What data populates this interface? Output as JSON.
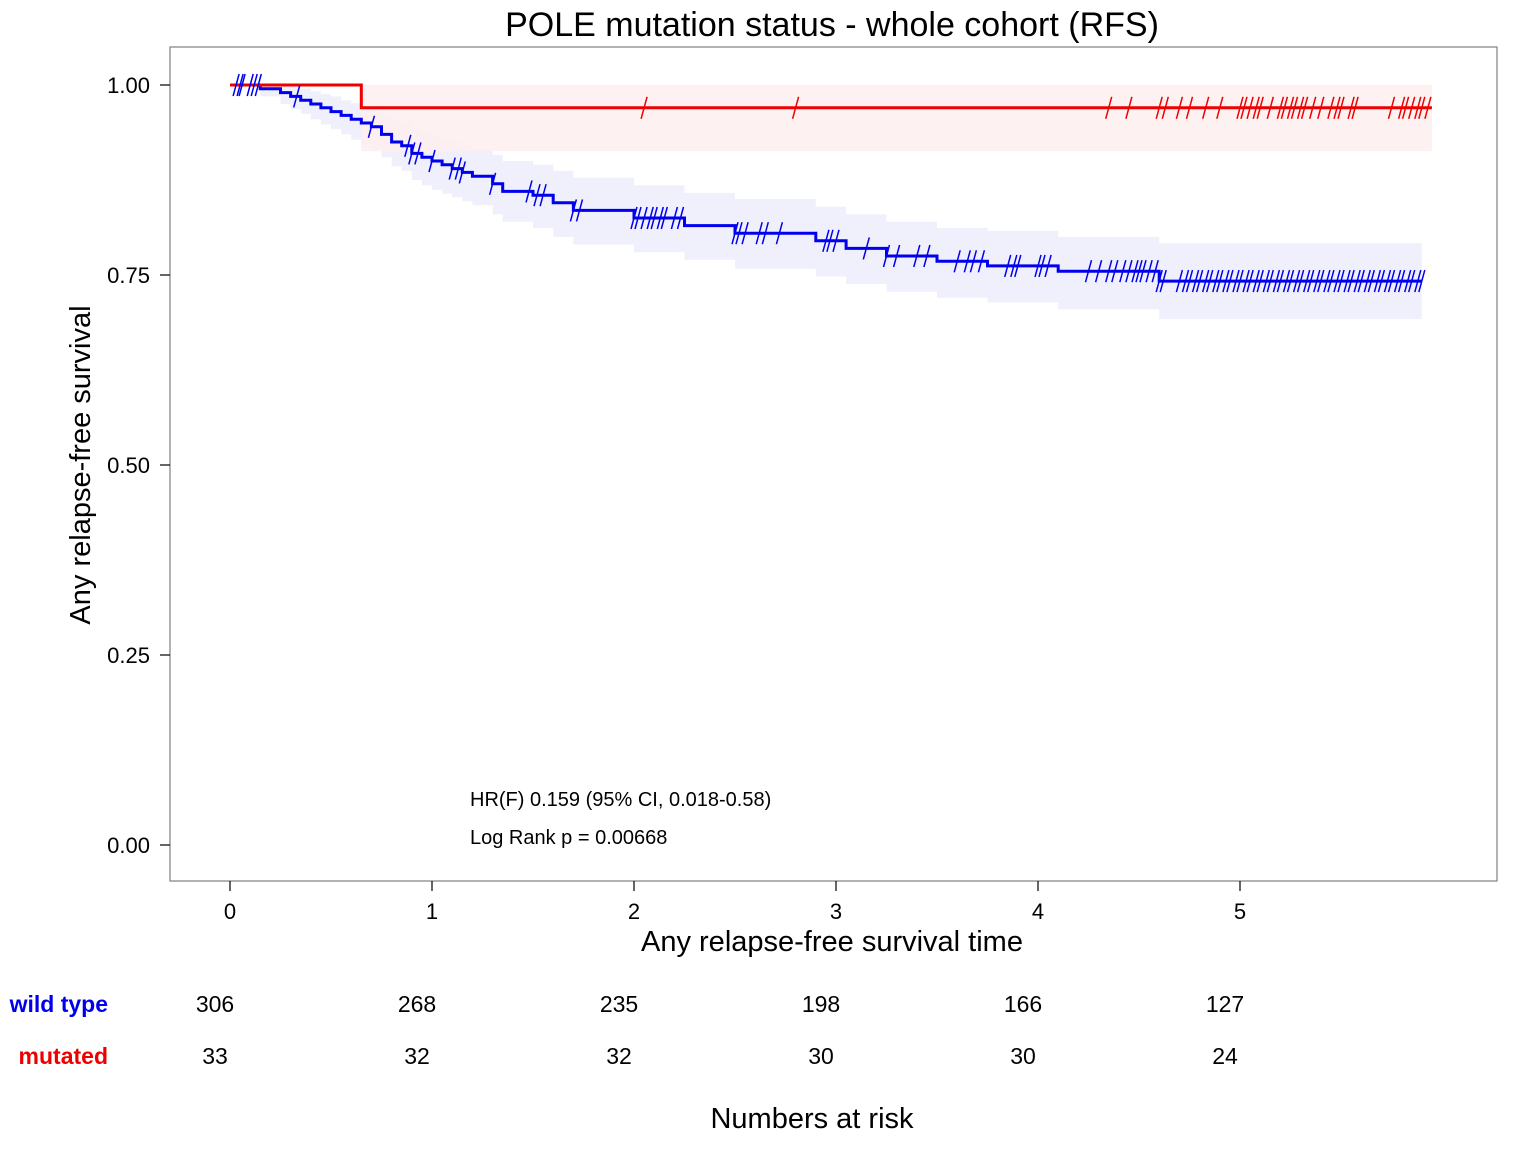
{
  "chart_data": {
    "type": "line",
    "title": "POLE mutation status - whole cohort (RFS)",
    "xlabel": "Any relapse-free survival time",
    "ylabel": "Any relapse-free survival",
    "xlim": [
      0,
      6
    ],
    "ylim": [
      0,
      1
    ],
    "x_ticks": [
      0,
      1,
      2,
      3,
      4,
      5
    ],
    "x_tick_labels": [
      "0",
      "1",
      "2",
      "3",
      "4",
      "5"
    ],
    "y_ticks": [
      0,
      0.25,
      0.5,
      0.75,
      1
    ],
    "y_tick_labels": [
      "0.00",
      "0.25",
      "0.50",
      "0.75",
      "1.00"
    ],
    "grid": false,
    "legend": "none",
    "annotations": [
      "HR(F) 0.159 (95% CI, 0.018-0.58)",
      "Log Rank p = 0.00668"
    ],
    "series": [
      {
        "name": "wild type",
        "color": "#0000ee",
        "ci_color": "#ededfc",
        "x": [
          0,
          0.15,
          0.25,
          0.3,
          0.35,
          0.4,
          0.45,
          0.5,
          0.55,
          0.6,
          0.65,
          0.7,
          0.75,
          0.8,
          0.85,
          0.9,
          0.95,
          1.0,
          1.05,
          1.1,
          1.15,
          1.2,
          1.3,
          1.35,
          1.5,
          1.6,
          1.7,
          2.0,
          2.25,
          2.5,
          2.9,
          3.05,
          3.25,
          3.5,
          3.75,
          4.1,
          4.6,
          5.9
        ],
        "y": [
          1.0,
          0.995,
          0.99,
          0.985,
          0.98,
          0.975,
          0.97,
          0.965,
          0.96,
          0.955,
          0.95,
          0.945,
          0.935,
          0.925,
          0.92,
          0.91,
          0.905,
          0.9,
          0.895,
          0.89,
          0.885,
          0.88,
          0.87,
          0.86,
          0.855,
          0.845,
          0.835,
          0.825,
          0.815,
          0.805,
          0.795,
          0.785,
          0.775,
          0.768,
          0.762,
          0.755,
          0.742,
          0.742
        ],
        "ci_upper": [
          1.0,
          1.0,
          1.0,
          0.998,
          0.995,
          0.992,
          0.988,
          0.985,
          0.98,
          0.976,
          0.972,
          0.968,
          0.962,
          0.955,
          0.95,
          0.943,
          0.938,
          0.933,
          0.928,
          0.925,
          0.92,
          0.916,
          0.908,
          0.9,
          0.895,
          0.887,
          0.878,
          0.868,
          0.858,
          0.85,
          0.84,
          0.83,
          0.82,
          0.812,
          0.808,
          0.8,
          0.792,
          0.792
        ],
        "ci_lower": [
          1.0,
          0.985,
          0.975,
          0.968,
          0.962,
          0.955,
          0.948,
          0.942,
          0.935,
          0.928,
          0.922,
          0.915,
          0.905,
          0.893,
          0.887,
          0.875,
          0.868,
          0.862,
          0.857,
          0.852,
          0.847,
          0.842,
          0.83,
          0.82,
          0.812,
          0.8,
          0.79,
          0.78,
          0.77,
          0.758,
          0.748,
          0.738,
          0.728,
          0.72,
          0.714,
          0.705,
          0.692,
          0.692
        ],
        "censor_x": [
          0.03,
          0.05,
          0.06,
          0.1,
          0.12,
          0.14,
          0.33,
          0.7,
          0.88,
          0.9,
          0.93,
          1.0,
          1.1,
          1.13,
          1.15,
          1.3,
          1.48,
          1.52,
          1.55,
          1.7,
          1.73,
          2.0,
          2.02,
          2.05,
          2.08,
          2.1,
          2.13,
          2.15,
          2.2,
          2.23,
          2.5,
          2.52,
          2.55,
          2.62,
          2.65,
          2.72,
          2.95,
          2.97,
          3.0,
          3.15,
          3.25,
          3.3,
          3.4,
          3.45,
          3.6,
          3.65,
          3.68,
          3.72,
          3.85,
          3.88,
          3.9,
          4.0,
          4.02,
          4.05,
          4.25,
          4.3,
          4.35,
          4.38,
          4.42,
          4.45,
          4.48,
          4.5,
          4.52,
          4.55,
          4.58,
          4.6,
          4.62,
          4.7,
          4.73,
          4.75,
          4.78,
          4.8,
          4.83,
          4.85,
          4.88,
          4.9,
          4.93,
          4.95,
          4.98,
          5.0,
          5.03,
          5.05,
          5.08,
          5.1,
          5.13,
          5.15,
          5.18,
          5.2,
          5.23,
          5.25,
          5.28,
          5.3,
          5.33,
          5.35,
          5.38,
          5.4,
          5.43,
          5.45,
          5.48,
          5.5,
          5.53,
          5.55,
          5.58,
          5.6,
          5.63,
          5.65,
          5.68,
          5.7,
          5.73,
          5.75,
          5.78,
          5.8,
          5.83,
          5.85,
          5.88,
          5.9
        ]
      },
      {
        "name": "mutated",
        "color": "#ee0000",
        "ci_color": "#fdeeee",
        "x": [
          0,
          0.65,
          5.95
        ],
        "y": [
          1.0,
          0.97,
          0.97
        ],
        "ci_upper": [
          1.0,
          1.0,
          1.0
        ],
        "ci_lower": [
          1.0,
          0.913,
          0.913
        ],
        "censor_x": [
          2.05,
          2.8,
          4.35,
          4.45,
          4.6,
          4.63,
          4.7,
          4.75,
          4.83,
          4.9,
          5.0,
          5.02,
          5.05,
          5.08,
          5.1,
          5.15,
          5.2,
          5.22,
          5.25,
          5.27,
          5.3,
          5.32,
          5.36,
          5.4,
          5.45,
          5.48,
          5.5,
          5.55,
          5.57,
          5.75,
          5.8,
          5.82,
          5.85,
          5.88,
          5.9,
          5.93
        ]
      }
    ],
    "risk_table": {
      "title": "Numbers at risk",
      "times": [
        0,
        1,
        2,
        3,
        4,
        5
      ],
      "rows": [
        {
          "name": "wild type",
          "color": "#0000ee",
          "counts": [
            "306",
            "268",
            "235",
            "198",
            "166",
            "127"
          ]
        },
        {
          "name": "mutated",
          "color": "#ee0000",
          "counts": [
            "33",
            "32",
            "32",
            "30",
            "30",
            "24"
          ]
        }
      ]
    }
  }
}
